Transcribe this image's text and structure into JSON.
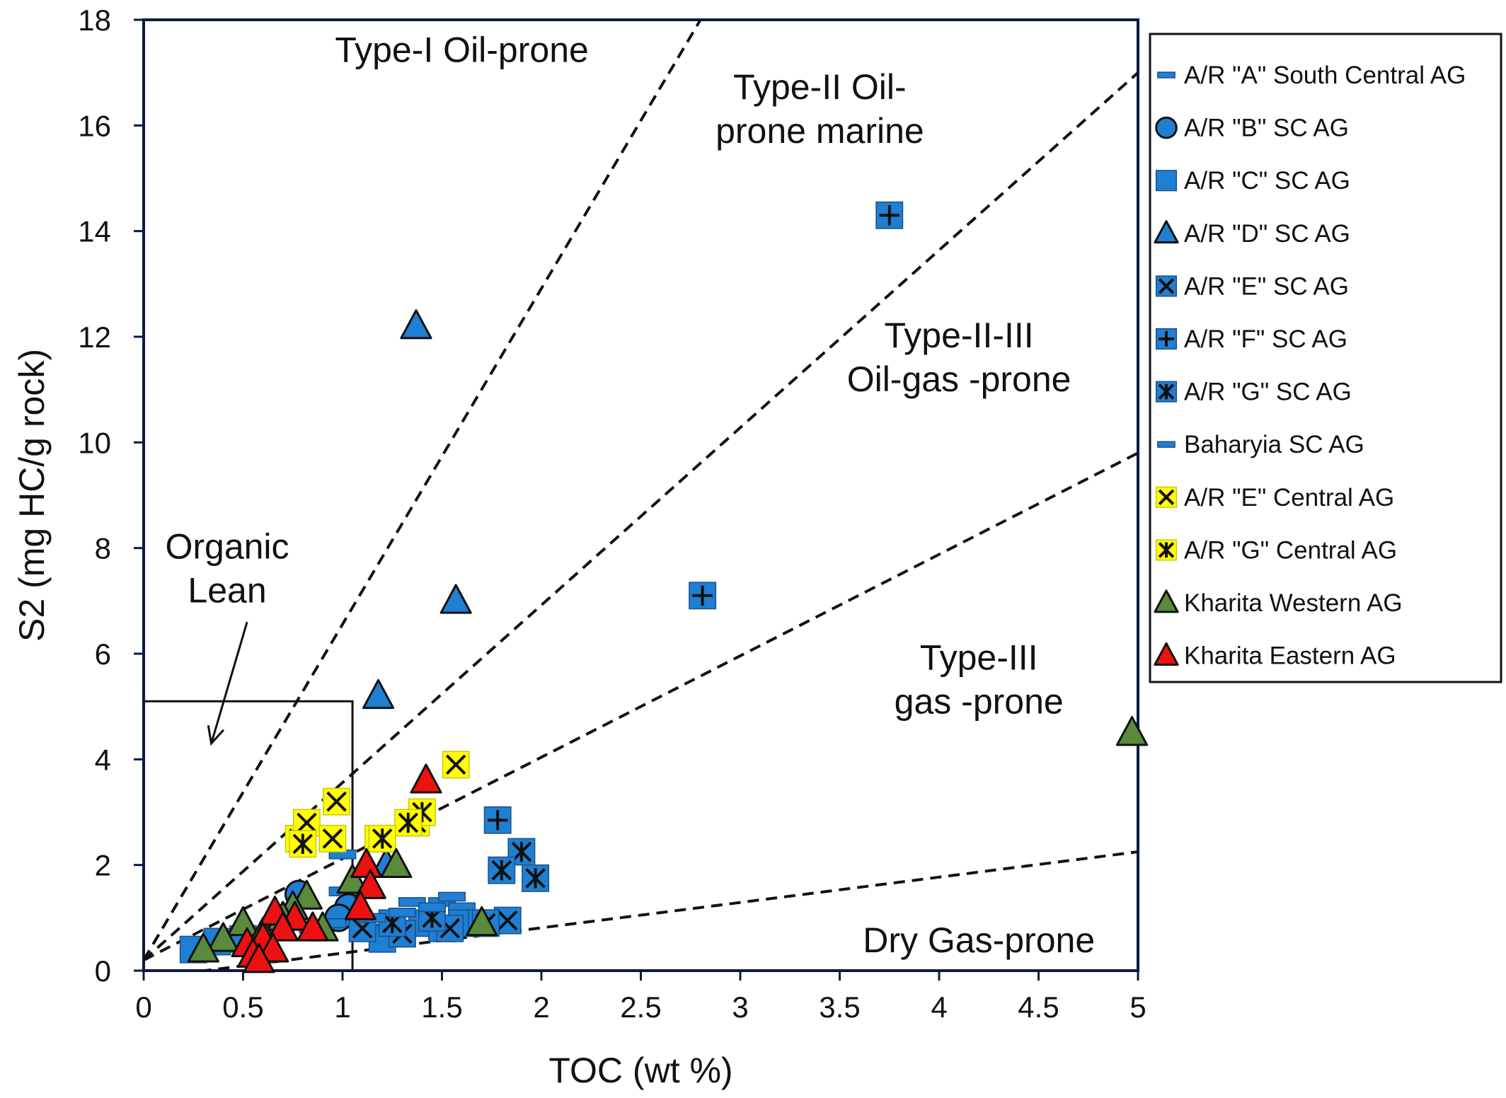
{
  "chart_data": {
    "type": "scatter",
    "xlabel": "TOC (wt %)",
    "ylabel": "S2 (mg HC/g rock)",
    "xlim": [
      0,
      5
    ],
    "ylim": [
      0,
      18
    ],
    "x_ticks": [
      "0",
      "0.5",
      "1",
      "1.5",
      "2",
      "2.5",
      "3",
      "3.5",
      "4",
      "4.5",
      "5"
    ],
    "y_ticks": [
      "0",
      "2",
      "4",
      "6",
      "8",
      "10",
      "12",
      "14",
      "16",
      "18"
    ],
    "grid": false,
    "legend_position": "right",
    "region_labels": [
      {
        "lines": [
          "Type-I Oil-prone"
        ],
        "x": 1.6,
        "y": 17.2
      },
      {
        "lines": [
          "Type-II Oil-",
          "prone marine"
        ],
        "x": 3.4,
        "y": 16.5
      },
      {
        "lines": [
          "Type-II-III",
          "Oil-gas -prone"
        ],
        "x": 4.1,
        "y": 11.8
      },
      {
        "lines": [
          "Type-III",
          "gas -prone"
        ],
        "x": 4.2,
        "y": 5.7
      },
      {
        "lines": [
          "Dry Gas-prone"
        ],
        "x": 4.2,
        "y": 0.35
      },
      {
        "lines": [
          "Organic",
          "Lean"
        ],
        "x": 0.42,
        "y": 7.8
      }
    ],
    "boundary_lines": [
      {
        "x1": 0,
        "y1": 0.2,
        "x2": 2.8,
        "y2": 18
      },
      {
        "x1": 0,
        "y1": 0.2,
        "x2": 5,
        "y2": 17
      },
      {
        "x1": 0,
        "y1": 0.2,
        "x2": 5,
        "y2": 9.8
      },
      {
        "x1": 0.1,
        "y1": -0.1,
        "x2": 5,
        "y2": 2.25
      }
    ],
    "organic_lean_box": {
      "x_max": 1.05,
      "y_max": 5.1
    },
    "organic_lean_arrow": {
      "from": [
        0.52,
        6.6
      ],
      "to": [
        0.34,
        4.3
      ]
    },
    "series": [
      {
        "name": "A/R \"A\" South Central AG",
        "marker": "dash",
        "fill": "#1f7fd2",
        "points": [
          [
            1.0,
            2.2
          ],
          [
            1.0,
            1.5
          ],
          [
            1.12,
            1.5
          ],
          [
            1.35,
            1.3
          ],
          [
            1.5,
            1.3
          ],
          [
            1.6,
            1.2
          ],
          [
            1.05,
            0.9
          ],
          [
            1.2,
            0.8
          ]
        ]
      },
      {
        "name": "A/R \"B\" SC AG",
        "marker": "circle",
        "fill": "#1f7fd2",
        "points": [
          [
            0.78,
            1.45
          ],
          [
            1.03,
            1.2
          ],
          [
            0.98,
            1.0
          ]
        ]
      },
      {
        "name": "A/R \"C\" SC AG",
        "marker": "square",
        "fill": "#1f7fd2",
        "points": [
          [
            0.25,
            0.4
          ],
          [
            0.37,
            0.55
          ],
          [
            0.5,
            0.6
          ],
          [
            1.2,
            0.6
          ],
          [
            1.3,
            0.7
          ],
          [
            1.4,
            0.9
          ],
          [
            1.5,
            0.8
          ],
          [
            1.6,
            0.9
          ],
          [
            0.6,
            0.4
          ],
          [
            1.7,
            0.9
          ]
        ]
      },
      {
        "name": "A/R \"D\" SC AG",
        "marker": "triangle",
        "fill": "#1f7fd2",
        "points": [
          [
            1.37,
            12.2
          ],
          [
            1.57,
            7.0
          ],
          [
            1.18,
            5.2
          ],
          [
            1.22,
            2.0
          ]
        ]
      },
      {
        "name": "A/R \"E\" SC AG",
        "marker": "x-square",
        "fill": "#1f7fd2",
        "points": [
          [
            1.83,
            0.95
          ],
          [
            1.54,
            0.8
          ],
          [
            1.72,
            0.9
          ],
          [
            1.3,
            0.7
          ],
          [
            1.1,
            0.8
          ]
        ]
      },
      {
        "name": "A/R \"F\" SC AG",
        "marker": "plus-square",
        "fill": "#1f7fd2",
        "points": [
          [
            3.75,
            14.3
          ],
          [
            2.81,
            7.1
          ],
          [
            1.78,
            2.85
          ]
        ]
      },
      {
        "name": "A/R \"G\" SC AG",
        "marker": "asterisk-square",
        "fill": "#1f7fd2",
        "points": [
          [
            1.9,
            2.25
          ],
          [
            1.8,
            1.9
          ],
          [
            1.97,
            1.75
          ],
          [
            1.25,
            0.9
          ],
          [
            1.45,
            1.0
          ]
        ]
      },
      {
        "name": "Baharyia SC AG",
        "marker": "dash",
        "fill": "#1f7fd2",
        "points": [
          [
            1.55,
            1.4
          ],
          [
            1.45,
            1.2
          ],
          [
            1.3,
            1.1
          ],
          [
            1.15,
            1.0
          ],
          [
            0.95,
            0.9
          ],
          [
            0.85,
            0.8
          ]
        ]
      },
      {
        "name": "A/R \"E\" Central AG",
        "marker": "x-square",
        "fill": "#ffff00",
        "points": [
          [
            0.78,
            2.5
          ],
          [
            0.82,
            2.8
          ],
          [
            0.95,
            2.5
          ],
          [
            0.97,
            3.2
          ],
          [
            1.57,
            3.9
          ],
          [
            1.37,
            2.8
          ],
          [
            1.18,
            2.5
          ]
        ]
      },
      {
        "name": "A/R \"G\" Central AG",
        "marker": "asterisk-square",
        "fill": "#ffff00",
        "points": [
          [
            1.4,
            3.0
          ],
          [
            1.33,
            2.8
          ],
          [
            1.2,
            2.5
          ],
          [
            0.8,
            2.4
          ]
        ]
      },
      {
        "name": "Kharita Western AG",
        "marker": "triangle",
        "fill": "#5a8a3c",
        "points": [
          [
            4.97,
            4.5
          ],
          [
            1.27,
            2.0
          ],
          [
            1.05,
            1.7
          ],
          [
            0.82,
            1.4
          ],
          [
            0.75,
            1.2
          ],
          [
            0.7,
            1.0
          ],
          [
            0.5,
            0.9
          ],
          [
            0.4,
            0.6
          ],
          [
            0.3,
            0.4
          ],
          [
            1.7,
            0.9
          ],
          [
            0.9,
            0.8
          ],
          [
            0.6,
            0.7
          ]
        ]
      },
      {
        "name": "Kharita Eastern AG",
        "marker": "triangle",
        "fill": "#ee1111",
        "points": [
          [
            1.42,
            3.6
          ],
          [
            1.12,
            2.0
          ],
          [
            1.14,
            1.6
          ],
          [
            1.09,
            1.2
          ],
          [
            0.76,
            1.0
          ],
          [
            0.66,
            1.1
          ],
          [
            0.7,
            0.8
          ],
          [
            0.6,
            0.6
          ],
          [
            0.52,
            0.5
          ],
          [
            0.55,
            0.3
          ],
          [
            0.65,
            0.4
          ],
          [
            0.85,
            0.8
          ],
          [
            0.58,
            0.2
          ]
        ]
      }
    ]
  }
}
